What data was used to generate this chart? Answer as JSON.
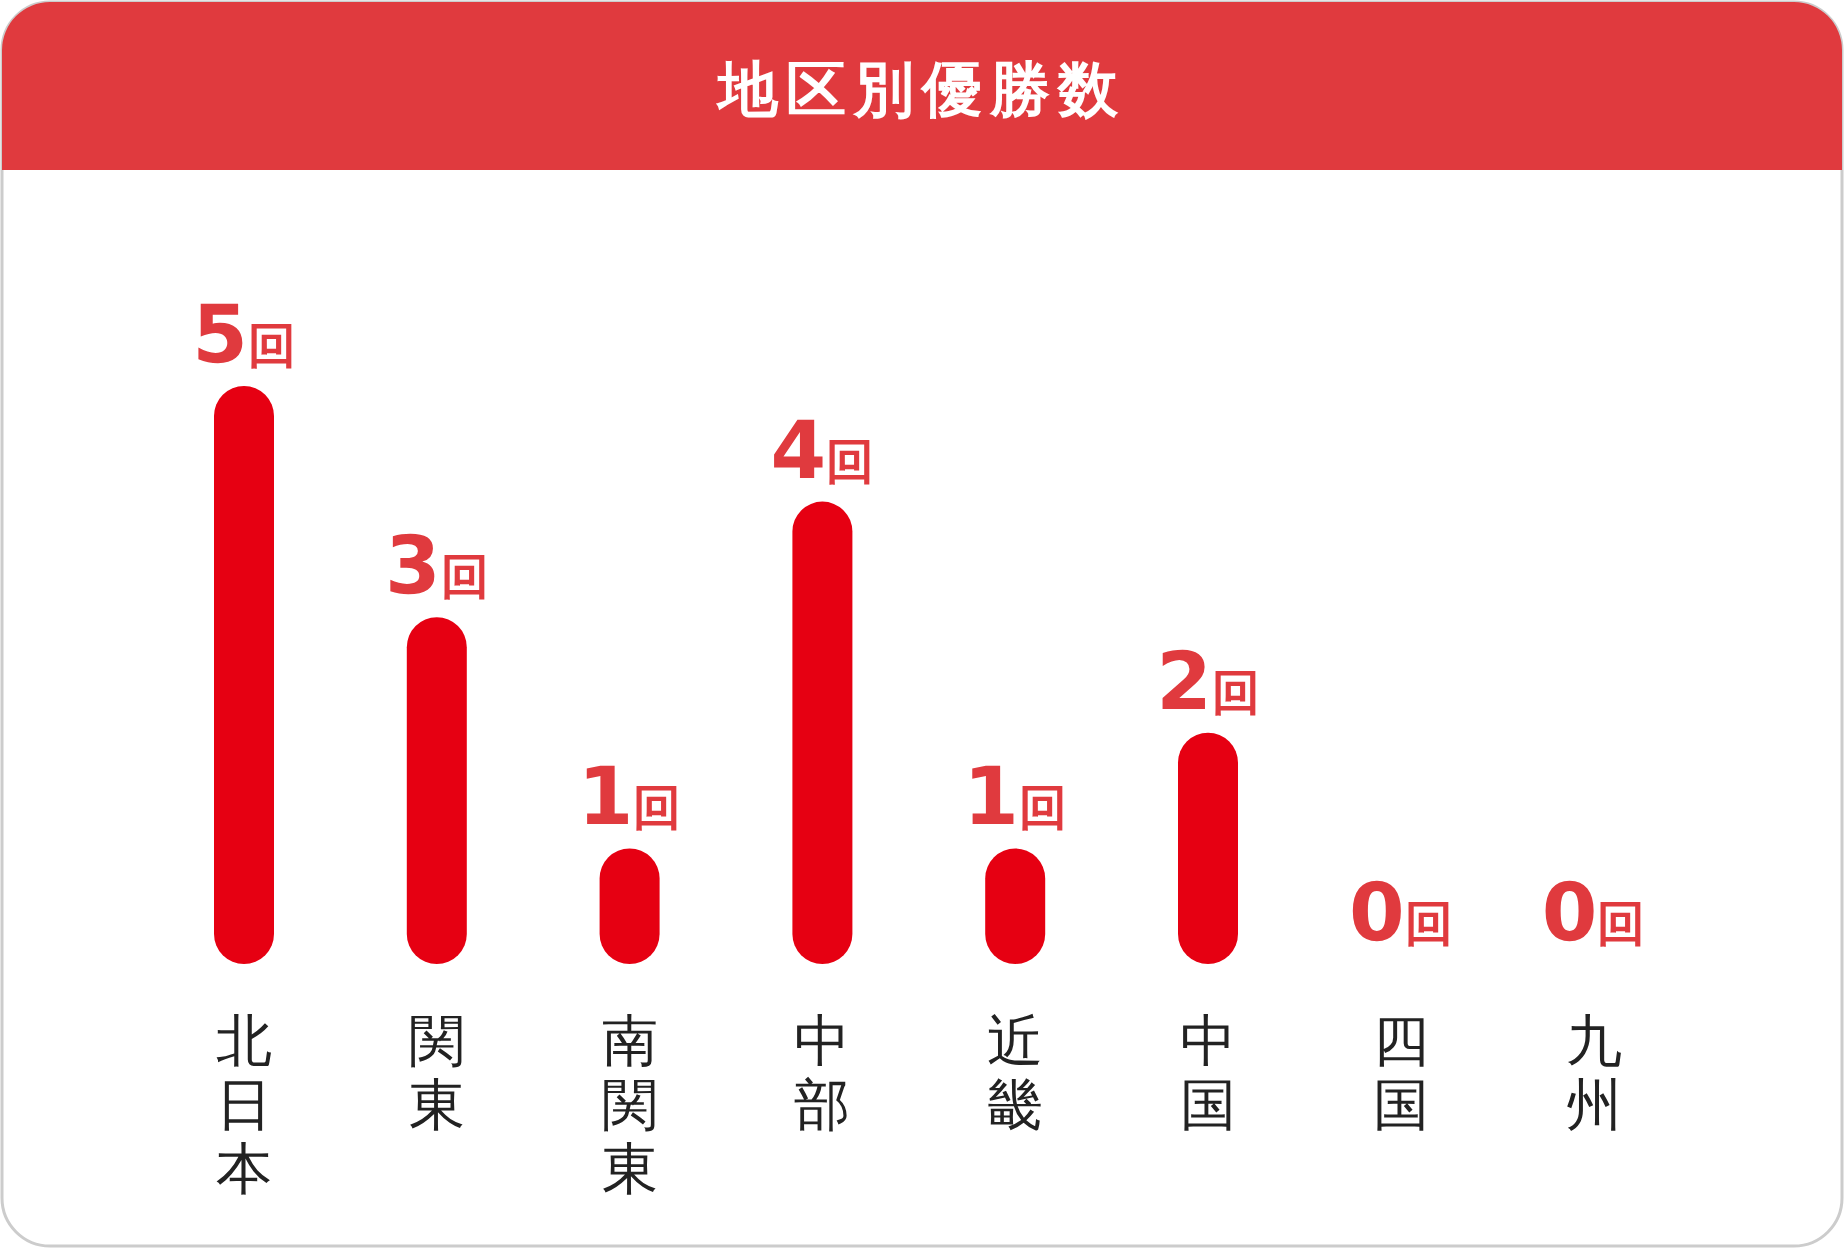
{
  "chart_data": {
    "type": "bar",
    "title": "地区別優勝数",
    "categories": [
      "北日本",
      "関東",
      "南関東",
      "中部",
      "近畿",
      "中国",
      "四国",
      "九州"
    ],
    "values": [
      5,
      3,
      1,
      4,
      1,
      2,
      0,
      0
    ],
    "value_labels": [
      "5回",
      "3回",
      "1回",
      "4回",
      "1回",
      "2回",
      "0回",
      "0回"
    ],
    "color": "#e60012"
  }
}
